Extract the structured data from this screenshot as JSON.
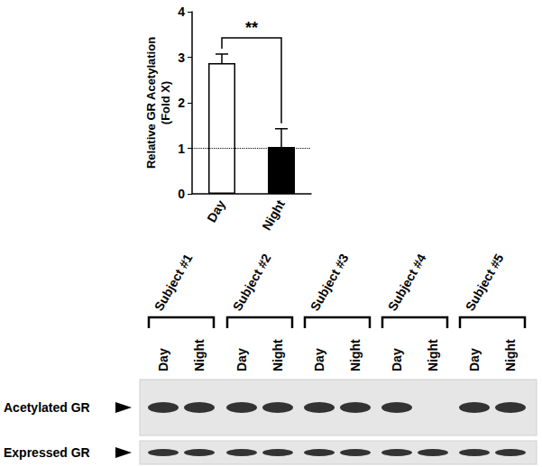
{
  "chart_data": {
    "type": "bar",
    "y_label": "Relative GR Acetylation\n(Fold X)",
    "categories": [
      "Day",
      "Night"
    ],
    "values": [
      2.87,
      1.03
    ],
    "error_bars": [
      0.2,
      0.4
    ],
    "colors": [
      "#ffffff",
      "#000000"
    ],
    "ylim": [
      0,
      4
    ],
    "yticks": [
      0,
      1,
      2,
      3,
      4
    ],
    "reference_line": 1,
    "annotations": [
      {
        "text": "**",
        "from": "Day",
        "to": "Night"
      }
    ],
    "grid": false,
    "data_labels": false
  },
  "blot": {
    "subjects": [
      "Subject #1",
      "Subject #2",
      "Subject #3",
      "Subject #4",
      "Subject #5"
    ],
    "lanes": [
      "Day",
      "Night"
    ],
    "rows": [
      {
        "label": "Acetylated GR",
        "bands": [
          true,
          true,
          true,
          true,
          true,
          true,
          true,
          false,
          true,
          true
        ]
      },
      {
        "label": "Expressed GR",
        "bands": [
          true,
          true,
          true,
          true,
          true,
          true,
          true,
          true,
          true,
          true
        ]
      }
    ]
  }
}
